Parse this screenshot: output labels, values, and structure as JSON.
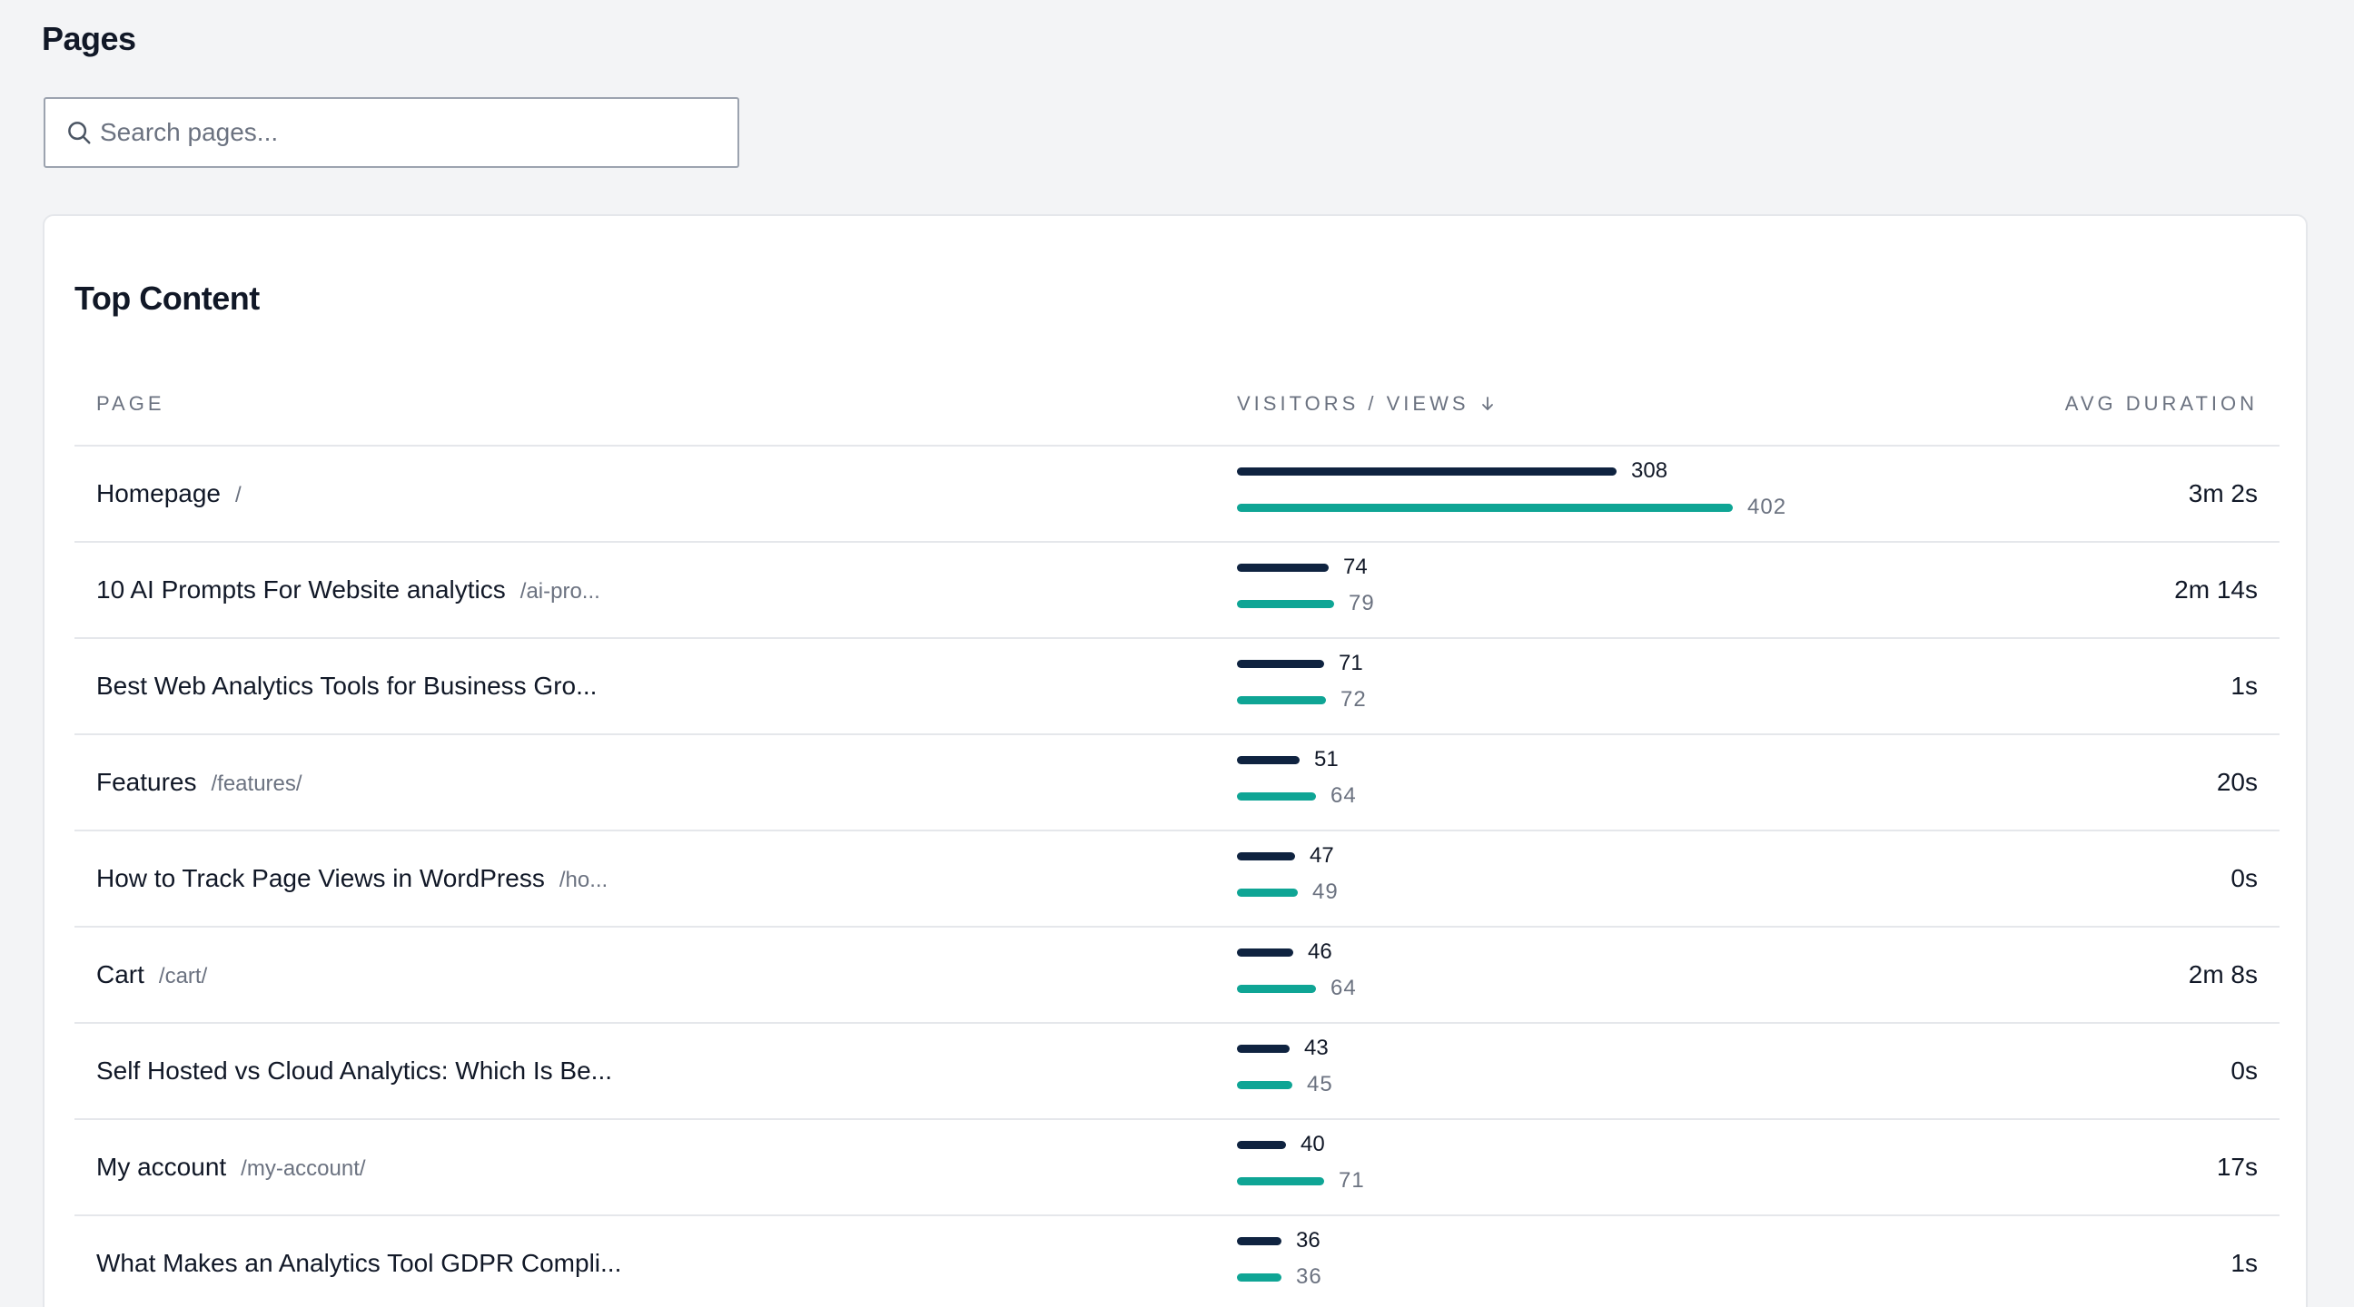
{
  "page_title": "Pages",
  "search": {
    "placeholder": "Search pages..."
  },
  "card": {
    "title": "Top Content",
    "columns": {
      "page": "PAGE",
      "visitors_views": "VISITORS / VIEWS",
      "avg_duration": "AVG DURATION"
    },
    "max_views": 402,
    "rows": [
      {
        "title": "Homepage",
        "path": "/",
        "visitors": "308",
        "views": "402",
        "duration": "3m 2s"
      },
      {
        "title": "10 AI Prompts For Website analytics",
        "path": "/ai-pro...",
        "visitors": "74",
        "views": "79",
        "duration": "2m 14s"
      },
      {
        "title": "Best Web Analytics Tools for Business Gro...",
        "path": "",
        "visitors": "71",
        "views": "72",
        "duration": "1s"
      },
      {
        "title": "Features",
        "path": "/features/",
        "visitors": "51",
        "views": "64",
        "duration": "20s"
      },
      {
        "title": "How to Track Page Views in WordPress",
        "path": "/ho...",
        "visitors": "47",
        "views": "49",
        "duration": "0s"
      },
      {
        "title": "Cart",
        "path": "/cart/",
        "visitors": "46",
        "views": "64",
        "duration": "2m 8s"
      },
      {
        "title": "Self Hosted vs Cloud Analytics: Which Is Be...",
        "path": "",
        "visitors": "43",
        "views": "45",
        "duration": "0s"
      },
      {
        "title": "My account",
        "path": "/my-account/",
        "visitors": "40",
        "views": "71",
        "duration": "17s"
      },
      {
        "title": "What Makes an Analytics Tool GDPR Compli...",
        "path": "",
        "visitors": "36",
        "views": "36",
        "duration": "1s"
      }
    ]
  },
  "colors": {
    "visitors_bar": "#0f2340",
    "views_bar": "#0fa595"
  },
  "icons": {
    "search": "search-icon",
    "sort": "arrow-down-icon"
  }
}
